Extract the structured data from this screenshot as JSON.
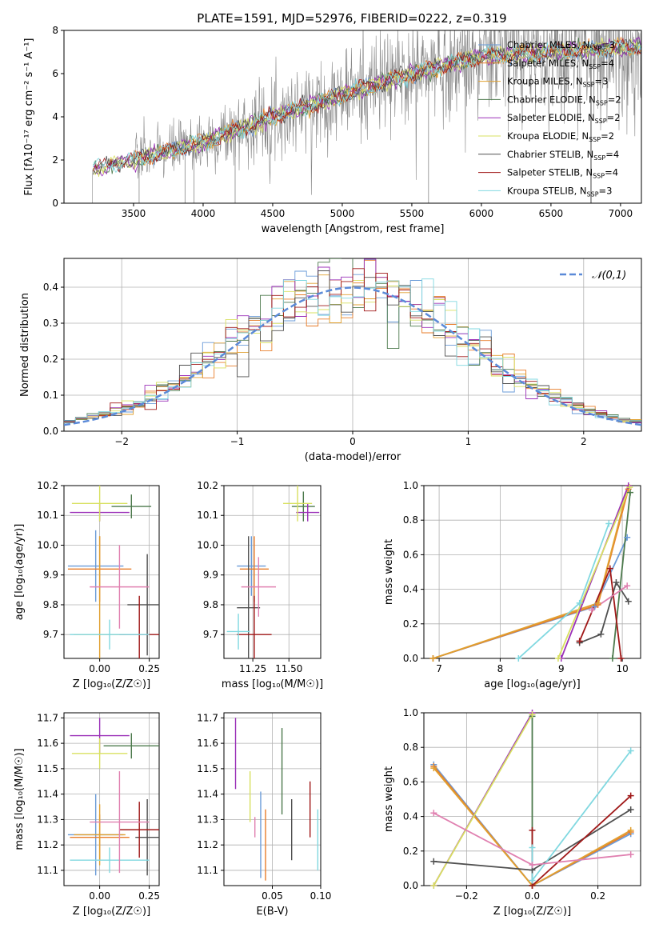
{
  "figure_title": "PLATE=1591, MJD=52976, FIBERID=0222, z=0.319",
  "colors": {
    "Chabrier MILES": "#6a9bd8",
    "Salpeter MILES": "#e87d2a",
    "Kroupa MILES": "#e0a030",
    "Chabrier ELODIE": "#4d7a4d",
    "Salpeter ELODIE": "#9b30b8",
    "Kroupa ELODIE": "#d8e060",
    "Chabrier STELIB": "#505050",
    "Salpeter STELIB": "#a01818",
    "Kroupa STELIB": "#80d8e0",
    "Pink": "#e080b0",
    "Dashed normal": "#5b8ad8"
  },
  "chart_data": [
    {
      "type": "line",
      "title": "PLATE=1591, MJD=52976, FIBERID=0222, z=0.319",
      "xlabel": "wavelength [Angstrom, rest frame]",
      "ylabel": "Flux [f_λ 10^-17 erg cm^-2 s^-1 A^-1]",
      "xlim": [
        3000,
        7150
      ],
      "ylim": [
        0,
        8
      ],
      "xticks": [
        3500,
        4000,
        4500,
        5000,
        5500,
        6000,
        6500,
        7000
      ],
      "yticks": [
        0,
        2,
        4,
        6,
        8
      ],
      "legend": "right",
      "series": [
        {
          "name": "Chabrier MILES, N_SSP=3"
        },
        {
          "name": "Salpeter MILES, N_SSP=4"
        },
        {
          "name": "Kroupa MILES, N_SSP=3"
        },
        {
          "name": "Chabrier ELODIE, N_SSP=2"
        },
        {
          "name": "Salpeter ELODIE, N_SSP=2"
        },
        {
          "name": "Kroupa ELODIE, N_SSP=2"
        },
        {
          "name": "Chabrier STELIB, N_SSP=4"
        },
        {
          "name": "Salpeter STELIB, N_SSP=4"
        },
        {
          "name": "Kroupa STELIB, N_SSP=3"
        }
      ],
      "data_envelope": {
        "x": [
          3200,
          3500,
          4000,
          4500,
          5000,
          5500,
          6000,
          6500,
          7000
        ],
        "y": [
          1.6,
          2.0,
          2.8,
          4.0,
          5.0,
          6.0,
          6.8,
          7.0,
          7.2
        ]
      }
    },
    {
      "type": "histogram",
      "xlabel": "(data-model)/error",
      "ylabel": "Normed distribution",
      "xlim": [
        -2.5,
        2.5
      ],
      "ylim": [
        0,
        0.48
      ],
      "xticks": [
        -2,
        -1,
        0,
        1,
        2
      ],
      "yticks": [
        0.0,
        0.1,
        0.2,
        0.3,
        0.4
      ],
      "legend_label": "𝒩(0,1)",
      "legend": "top-right",
      "bins": 50,
      "normal": {
        "mu": 0,
        "sigma": 1
      }
    },
    {
      "type": "scatter",
      "xlabel": "Z [log10(Z/Z☉)]",
      "ylabel": "age  [log10(age/yr)]",
      "xlim": [
        -0.18,
        0.3
      ],
      "ylim": [
        9.62,
        10.2
      ],
      "xticks": [
        0.0,
        0.25
      ],
      "yticks": [
        9.7,
        9.8,
        9.9,
        10.0,
        10.1,
        10.2
      ],
      "points": [
        {
          "c": "Chabrier MILES",
          "x": -0.02,
          "y": 9.93,
          "ex": 0.14,
          "ey": 0.12
        },
        {
          "c": "Salpeter MILES",
          "x": 0.0,
          "y": 9.92,
          "ex": 0.16,
          "ey": 0.11
        },
        {
          "c": "Kroupa MILES",
          "x": 0.0,
          "y": 9.7,
          "ex": 0.13,
          "ey": 0.33
        },
        {
          "c": "Chabrier ELODIE",
          "x": 0.16,
          "y": 10.13,
          "ex": 0.1,
          "ey": 0.04
        },
        {
          "c": "Salpeter ELODIE",
          "x": 0.0,
          "y": 10.11,
          "ex": 0.15,
          "ey": 0.03
        },
        {
          "c": "Kroupa ELODIE",
          "x": 0.0,
          "y": 10.14,
          "ex": 0.14,
          "ey": 0.06
        },
        {
          "c": "Chabrier STELIB",
          "x": 0.24,
          "y": 9.8,
          "ex": 0.1,
          "ey": 0.17
        },
        {
          "c": "Salpeter STELIB",
          "x": 0.2,
          "y": 9.7,
          "ex": 0.1,
          "ey": 0.13
        },
        {
          "c": "Kroupa STELIB",
          "x": 0.05,
          "y": 9.7,
          "ex": 0.2,
          "ey": 0.05
        },
        {
          "c": "Pink",
          "x": 0.1,
          "y": 9.86,
          "ex": 0.15,
          "ey": 0.14
        }
      ]
    },
    {
      "type": "scatter",
      "xlabel": "mass [log10(M/M☉)]",
      "xlim": [
        11.05,
        11.72
      ],
      "ylim": [
        9.62,
        10.2
      ],
      "xticks": [
        11.25,
        11.5
      ],
      "yticks": [
        9.7,
        9.8,
        9.9,
        10.0,
        10.1,
        10.2
      ],
      "points": [
        {
          "c": "Chabrier MILES",
          "x": 11.24,
          "y": 9.93,
          "ex": 0.1,
          "ey": 0.1
        },
        {
          "c": "Salpeter MILES",
          "x": 11.26,
          "y": 9.92,
          "ex": 0.1,
          "ey": 0.11
        },
        {
          "c": "Chabrier ELODIE",
          "x": 11.6,
          "y": 10.13,
          "ex": 0.08,
          "ey": 0.05
        },
        {
          "c": "Salpeter ELODIE",
          "x": 11.63,
          "y": 10.11,
          "ex": 0.08,
          "ey": 0.03
        },
        {
          "c": "Kroupa ELODIE",
          "x": 11.56,
          "y": 10.14,
          "ex": 0.1,
          "ey": 0.06
        },
        {
          "c": "Chabrier STELIB",
          "x": 11.22,
          "y": 9.79,
          "ex": 0.08,
          "ey": 0.24
        },
        {
          "c": "Salpeter STELIB",
          "x": 11.26,
          "y": 9.7,
          "ex": 0.12,
          "ey": 0.13
        },
        {
          "c": "Kroupa STELIB",
          "x": 11.15,
          "y": 9.71,
          "ex": 0.08,
          "ey": 0.06
        },
        {
          "c": "Pink",
          "x": 11.29,
          "y": 9.86,
          "ex": 0.12,
          "ey": 0.1
        }
      ]
    },
    {
      "type": "line",
      "xlabel": "age  [log10(age/yr)]",
      "ylabel": "mass weight",
      "xlim": [
        6.75,
        10.3
      ],
      "ylim": [
        0,
        1
      ],
      "xticks": [
        7,
        8,
        9,
        10
      ],
      "yticks": [
        0.0,
        0.2,
        0.4,
        0.6,
        0.8,
        1.0
      ],
      "series": [
        {
          "c": "Chabrier MILES",
          "x": [
            6.9,
            9.55,
            10.08
          ],
          "y": [
            0.0,
            0.3,
            0.7
          ]
        },
        {
          "c": "Salpeter MILES",
          "x": [
            6.9,
            9.6,
            10.1
          ],
          "y": [
            0.0,
            0.31,
            0.98
          ]
        },
        {
          "c": "Kroupa MILES",
          "x": [
            6.9,
            9.6,
            10.1
          ],
          "y": [
            0.0,
            0.32,
            1.0
          ]
        },
        {
          "c": "Chabrier ELODIE",
          "x": [
            9.84,
            10.13
          ],
          "y": [
            0.0,
            0.96
          ]
        },
        {
          "c": "Salpeter ELODIE",
          "x": [
            9.0,
            10.1
          ],
          "y": [
            0.0,
            1.0
          ]
        },
        {
          "c": "Kroupa ELODIE",
          "x": [
            8.95,
            10.12
          ],
          "y": [
            0.0,
            0.99
          ]
        },
        {
          "c": "Chabrier STELIB",
          "x": [
            9.3,
            9.65,
            9.9,
            10.1
          ],
          "y": [
            0.09,
            0.14,
            0.44,
            0.33
          ]
        },
        {
          "c": "Salpeter STELIB",
          "x": [
            9.3,
            9.8,
            9.98
          ],
          "y": [
            0.1,
            0.52,
            0.0
          ]
        },
        {
          "c": "Kroupa STELIB",
          "x": [
            8.3,
            9.3,
            9.78
          ],
          "y": [
            0.0,
            0.32,
            0.78
          ]
        },
        {
          "c": "Pink",
          "x": [
            9.5,
            10.08
          ],
          "y": [
            0.28,
            0.42
          ]
        }
      ]
    },
    {
      "type": "scatter",
      "xlabel": "Z [log10(Z/Z☉)]",
      "ylabel": "mass [log10(M/M☉)]",
      "xlim": [
        -0.18,
        0.3
      ],
      "ylim": [
        11.04,
        11.72
      ],
      "xticks": [
        0.0,
        0.25
      ],
      "yticks": [
        11.1,
        11.2,
        11.3,
        11.4,
        11.5,
        11.6,
        11.7
      ],
      "points": [
        {
          "c": "Chabrier MILES",
          "x": -0.02,
          "y": 11.24,
          "ex": 0.14,
          "ey": 0.16
        },
        {
          "c": "Salpeter MILES",
          "x": 0.0,
          "y": 11.23,
          "ex": 0.15,
          "ey": 0.09
        },
        {
          "c": "Kroupa MILES",
          "x": 0.0,
          "y": 11.24,
          "ex": 0.13,
          "ey": 0.12
        },
        {
          "c": "Chabrier ELODIE",
          "x": 0.16,
          "y": 11.59,
          "ex": 0.14,
          "ey": 0.05
        },
        {
          "c": "Salpeter ELODIE",
          "x": 0.0,
          "y": 11.63,
          "ex": 0.15,
          "ey": 0.07
        },
        {
          "c": "Kroupa ELODIE",
          "x": 0.0,
          "y": 11.56,
          "ex": 0.14,
          "ey": 0.06
        },
        {
          "c": "Chabrier STELIB",
          "x": 0.24,
          "y": 11.23,
          "ex": 0.06,
          "ey": 0.15
        },
        {
          "c": "Salpeter STELIB",
          "x": 0.2,
          "y": 11.26,
          "ex": 0.1,
          "ey": 0.11
        },
        {
          "c": "Kroupa STELIB",
          "x": 0.05,
          "y": 11.14,
          "ex": 0.2,
          "ey": 0.05
        },
        {
          "c": "Pink",
          "x": 0.1,
          "y": 11.29,
          "ex": 0.15,
          "ey": 0.2
        }
      ]
    },
    {
      "type": "scatter",
      "xlabel": "E(B-V)",
      "xlim": [
        0.0,
        0.1
      ],
      "ylim": [
        11.04,
        11.72
      ],
      "xticks": [
        0.05,
        0.1
      ],
      "yticks": [
        11.1,
        11.2,
        11.3,
        11.4,
        11.5,
        11.6,
        11.7
      ],
      "points": [
        {
          "c": "Chabrier MILES",
          "x": 0.038,
          "y": 11.24,
          "ey": 0.17
        },
        {
          "c": "Salpeter MILES",
          "x": 0.043,
          "y": 11.2,
          "ey": 0.14
        },
        {
          "c": "Chabrier ELODIE",
          "x": 0.06,
          "y": 11.49,
          "ey": 0.17
        },
        {
          "c": "Salpeter ELODIE",
          "x": 0.012,
          "y": 11.56,
          "ey": 0.14
        },
        {
          "c": "Kroupa ELODIE",
          "x": 0.027,
          "y": 11.39,
          "ey": 0.1
        },
        {
          "c": "Chabrier STELIB",
          "x": 0.07,
          "y": 11.26,
          "ey": 0.12
        },
        {
          "c": "Salpeter STELIB",
          "x": 0.089,
          "y": 11.34,
          "ey": 0.11
        },
        {
          "c": "Kroupa STELIB",
          "x": 0.097,
          "y": 11.22,
          "ey": 0.12
        },
        {
          "c": "Pink",
          "x": 0.032,
          "y": 11.27,
          "ey": 0.04
        }
      ]
    },
    {
      "type": "line",
      "xlabel": "Z [log10(Z/Z☉)]",
      "ylabel": "mass weight",
      "xlim": [
        -0.33,
        0.33
      ],
      "ylim": [
        0,
        1
      ],
      "xticks": [
        -0.2,
        0.0,
        0.2
      ],
      "yticks": [
        0.0,
        0.2,
        0.4,
        0.6,
        0.8,
        1.0
      ],
      "series": [
        {
          "c": "Chabrier MILES",
          "x": [
            -0.3,
            0.0,
            0.3
          ],
          "y": [
            0.7,
            0.0,
            0.3
          ]
        },
        {
          "c": "Salpeter MILES",
          "x": [
            -0.3,
            0.0,
            0.3
          ],
          "y": [
            0.69,
            0.0,
            0.31
          ]
        },
        {
          "c": "Kroupa MILES",
          "x": [
            -0.3,
            0.0,
            0.3
          ],
          "y": [
            0.68,
            0.0,
            0.32
          ]
        },
        {
          "c": "Chabrier ELODIE",
          "x": [
            0.0,
            0.0
          ],
          "y": [
            0.0,
            0.98
          ]
        },
        {
          "c": "Salpeter ELODIE",
          "x": [
            -0.3,
            0.0
          ],
          "y": [
            0.0,
            1.0
          ]
        },
        {
          "c": "Kroupa ELODIE",
          "x": [
            -0.3,
            0.0
          ],
          "y": [
            0.0,
            0.99
          ]
        },
        {
          "c": "Chabrier STELIB",
          "x": [
            -0.3,
            0.0,
            0.3
          ],
          "y": [
            0.14,
            0.09,
            0.44
          ]
        },
        {
          "c": "Salpeter STELIB",
          "x": [
            0.0,
            0.0,
            0.3
          ],
          "y": [
            0.32,
            0.0,
            0.52
          ]
        },
        {
          "c": "Kroupa STELIB",
          "x": [
            0.0,
            0.0,
            0.3
          ],
          "y": [
            0.22,
            0.03,
            0.78
          ]
        },
        {
          "c": "Pink",
          "x": [
            -0.3,
            0.0,
            0.3
          ],
          "y": [
            0.42,
            0.12,
            0.18
          ]
        }
      ]
    }
  ]
}
